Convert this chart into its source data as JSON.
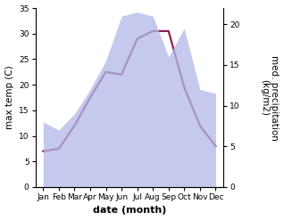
{
  "months": [
    "Jan",
    "Feb",
    "Mar",
    "Apr",
    "May",
    "Jun",
    "Jul",
    "Aug",
    "Sep",
    "Oct",
    "Nov",
    "Dec"
  ],
  "max_temp": [
    7.0,
    7.5,
    12.0,
    17.5,
    22.5,
    22.0,
    29.0,
    30.5,
    30.5,
    19.5,
    12.0,
    8.0
  ],
  "precipitation": [
    8.0,
    7.0,
    9.0,
    12.0,
    15.5,
    21.0,
    21.5,
    21.0,
    16.0,
    19.5,
    12.0,
    11.5
  ],
  "temp_ylim": [
    0,
    35
  ],
  "precip_ylim": [
    0,
    22
  ],
  "temp_yticks": [
    0,
    5,
    10,
    15,
    20,
    25,
    30,
    35
  ],
  "precip_yticks": [
    0,
    5,
    10,
    15,
    20
  ],
  "temp_ylabel": "max temp (C)",
  "precip_ylabel": "med. precipitation\n(kg/m2)",
  "xlabel": "date (month)",
  "line_color": "#8B2252",
  "fill_color": "#b0b8e8",
  "fill_alpha": 0.75,
  "background_color": "#ffffff",
  "label_fontsize": 7.5,
  "tick_fontsize": 6.5,
  "xlabel_fontsize": 8,
  "line_width": 1.6
}
